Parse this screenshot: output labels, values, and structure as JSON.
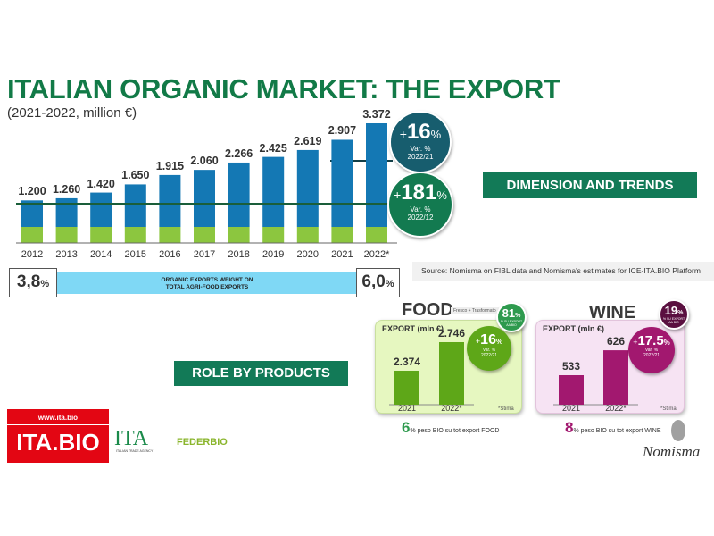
{
  "title": "ITALIAN ORGANIC MARKET: THE EXPORT",
  "subtitle": "(2021-2022, million €)",
  "chart_data": [
    {
      "type": "bar",
      "categories": [
        "2012",
        "2013",
        "2014",
        "2015",
        "2016",
        "2017",
        "2018",
        "2019",
        "2020",
        "2021",
        "2022*"
      ],
      "values": [
        1200,
        1260,
        1420,
        1650,
        1915,
        2060,
        2266,
        2425,
        2619,
        2907,
        3372
      ],
      "value_labels": [
        "1.200",
        "1.260",
        "1.420",
        "1.650",
        "1.915",
        "2.060",
        "2.266",
        "2.425",
        "2.619",
        "2.907",
        "3.372"
      ],
      "bar_color": "#1478b4",
      "base_color": "#8cc63f"
    },
    {
      "type": "bar",
      "title": "FOOD",
      "subtitle": "Fresco + Trasformato",
      "ylabel": "EXPORT (mln €)",
      "categories": [
        "2021",
        "2022*"
      ],
      "values": [
        2374,
        2746
      ],
      "value_labels": [
        "2.374",
        "2.746"
      ],
      "bar_color": "#5ea718",
      "note": "*Stima"
    },
    {
      "type": "bar",
      "title": "WINE",
      "ylabel": "EXPORT (mln €)",
      "categories": [
        "2021",
        "2022*"
      ],
      "values": [
        533,
        626
      ],
      "value_labels": [
        "533",
        "626"
      ],
      "bar_color": "#a2186f",
      "note": "*Stima"
    }
  ],
  "badges": {
    "var21": {
      "sign": "+",
      "value": "16",
      "unit": "%",
      "l1": "Var. %",
      "l2": "2022/21",
      "color": "#175d6e"
    },
    "var12": {
      "sign": "+",
      "value": "181",
      "unit": "%",
      "l1": "Var. %",
      "l2": "2022/12",
      "color": "#137a50"
    },
    "food_share": {
      "value": "81",
      "unit": "%",
      "l1": "% SU EXPORT",
      "l2": "AA BIO",
      "color": "#2e9a4e"
    },
    "food_var": {
      "sign": "+",
      "value": "16",
      "unit": "%",
      "l1": "Var. %",
      "l2": "2022/21",
      "color": "#5ea718"
    },
    "wine_share": {
      "value": "19",
      "unit": "%",
      "l1": "% SU EXPORT",
      "l2": "AA BIO",
      "color": "#5a1040"
    },
    "wine_var": {
      "sign": "+",
      "value": "17.5",
      "unit": "%",
      "l1": "Var. %",
      "l2": "2022/21",
      "color": "#a2186f"
    }
  },
  "weight": {
    "start": "3,8",
    "end": "6,0",
    "unit": "%",
    "label1": "ORGANIC EXPORTS WEIGHT ON",
    "label2": "TOTAL AGRI-FOOD EXPORTS"
  },
  "sections": {
    "dimension": "DIMENSION AND TRENDS",
    "role": "ROLE BY PRODUCTS"
  },
  "source": "Source: Nomisma on FIBL data and Nomisma's estimates for ICE-ITA.BIO Platform",
  "food_footer": {
    "value": "6",
    "text": "% peso BIO su tot export FOOD"
  },
  "wine_footer": {
    "value": "8",
    "text": "% peso BIO su tot export WINE"
  },
  "logos": {
    "itabio_url": "www.ita.bio",
    "itabio": "ITA.BIO",
    "ita": "ITA",
    "ita_sub": "ITALIAN TRADE AGENCY",
    "federbio": "FEDERBIO",
    "nomisma": "Nomisma"
  }
}
